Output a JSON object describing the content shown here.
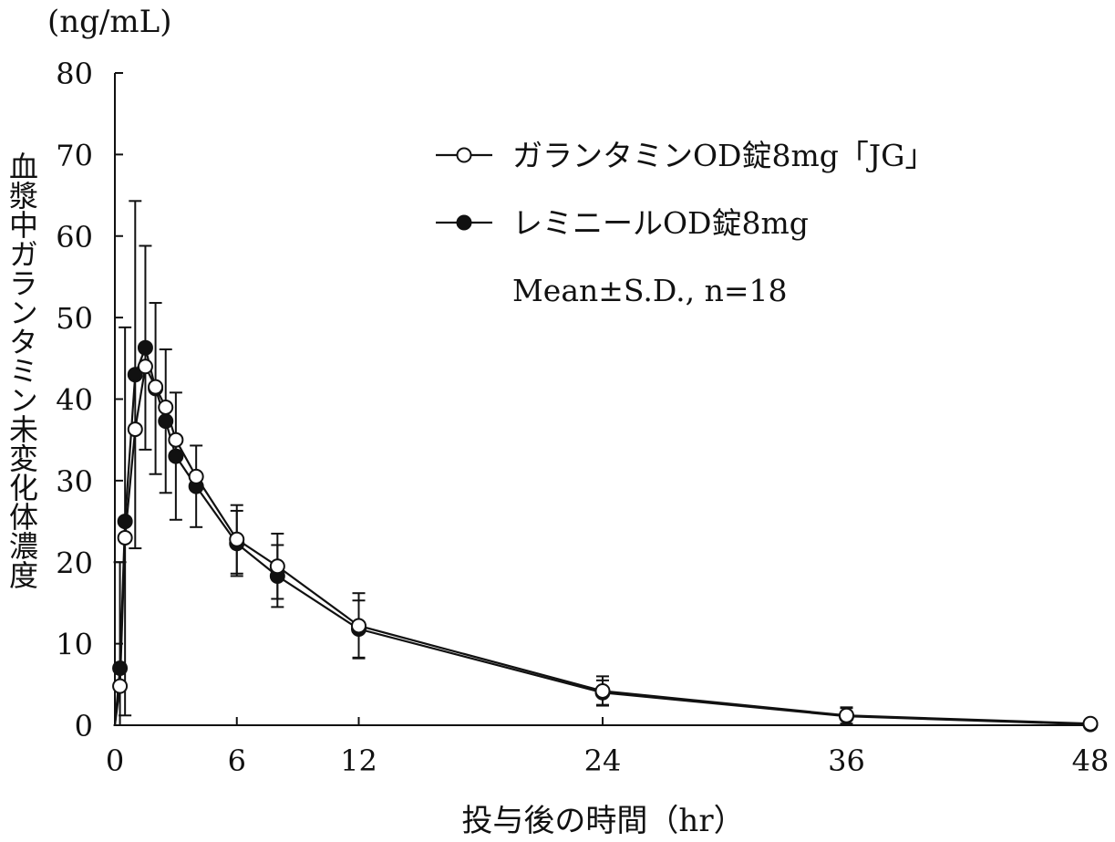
{
  "chart_data": {
    "type": "line",
    "unit_label": "(ng/mL)",
    "ylabel": "血漿中ガランタミン未変化体濃度",
    "xlabel": "投与後の時間（hr）",
    "xlim": [
      0,
      48
    ],
    "ylim": [
      0,
      80
    ],
    "xticks": [
      0,
      6,
      12,
      24,
      36,
      48
    ],
    "yticks": [
      0,
      10,
      20,
      30,
      40,
      50,
      60,
      70,
      80
    ],
    "stats_note": "Mean±S.D., n=18",
    "series": [
      {
        "name": "ガランタミンOD錠8mg「JG」",
        "marker": "open-circle",
        "x": [
          0,
          0.25,
          0.5,
          1,
          1.5,
          2,
          2.5,
          3,
          4,
          6,
          8,
          12,
          24,
          36,
          48
        ],
        "values": [
          0,
          4.8,
          23.0,
          36.3,
          44.0,
          41.5,
          39.0,
          35.0,
          30.5,
          22.8,
          19.5,
          12.2,
          4.2,
          1.2,
          0.2
        ],
        "sd": [
          0,
          0,
          0,
          0,
          0,
          0,
          0,
          0,
          0,
          4.2,
          4.0,
          4.0,
          1.8,
          1.0,
          0
        ]
      },
      {
        "name": "レミニールOD錠8mg",
        "marker": "filled-circle",
        "x": [
          0,
          0.25,
          0.5,
          1,
          1.5,
          2,
          2.5,
          3,
          4,
          6,
          8,
          12,
          24,
          36,
          48
        ],
        "values": [
          0,
          7.0,
          25.0,
          43.0,
          46.3,
          41.3,
          37.3,
          33.0,
          29.3,
          22.3,
          18.3,
          11.8,
          4.0,
          1.1,
          0.1
        ],
        "sd": [
          0,
          13.0,
          23.8,
          21.3,
          12.5,
          10.5,
          8.8,
          7.8,
          5.0,
          4.0,
          3.8,
          3.5,
          1.5,
          1.0,
          0
        ]
      }
    ]
  }
}
